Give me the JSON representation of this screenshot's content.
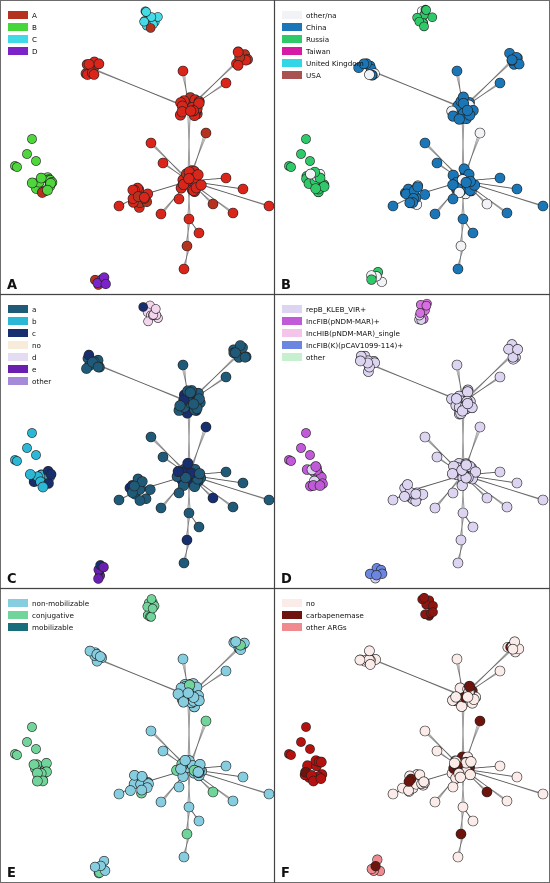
{
  "panels": [
    {
      "letter": "A",
      "legend": [
        {
          "label": "A",
          "color": "#b5321f"
        },
        {
          "label": "B",
          "color": "#47d63a"
        },
        {
          "label": "C",
          "color": "#3fd9e8"
        },
        {
          "label": "D",
          "color": "#7b22c8"
        }
      ],
      "palette": {
        "main": "#d9251a",
        "left": "#4fd63c",
        "top": "#44dbe6",
        "bottom": "#7b22c8",
        "accent": "#b5321f"
      }
    },
    {
      "letter": "B",
      "legend": [
        {
          "label": "other/na",
          "color": "#f2f3f6"
        },
        {
          "label": "China",
          "color": "#1a76b6"
        },
        {
          "label": "Russia",
          "color": "#2fc96a"
        },
        {
          "label": "Taiwan",
          "color": "#d71aa6"
        },
        {
          "label": "United Kingdom",
          "color": "#32d6e6"
        },
        {
          "label": "USA",
          "color": "#a85252"
        }
      ],
      "palette": {
        "main": "#1a76b6",
        "left": "#2fc96a",
        "top": "#2fc96a",
        "bottom": "#2fc96a",
        "accent": "#f2f3f6"
      }
    },
    {
      "letter": "C",
      "legend": [
        {
          "label": "a",
          "color": "#1f5a78"
        },
        {
          "label": "b",
          "color": "#2bb7d6"
        },
        {
          "label": "c",
          "color": "#172f6e"
        },
        {
          "label": "no",
          "color": "#f6ecd9"
        },
        {
          "label": "d",
          "color": "#e4dcf2"
        },
        {
          "label": "e",
          "color": "#6a1fb0"
        },
        {
          "label": "other",
          "color": "#a48ad8"
        }
      ],
      "palette": {
        "main": "#1f5a78",
        "left": "#2bb7d6",
        "top": "#f3d6ee",
        "bottom": "#6a1fb0",
        "accent": "#172f6e"
      }
    },
    {
      "letter": "D",
      "legend": [
        {
          "label": "repB_KLEB_VIR+",
          "color": "#dcd4f0"
        },
        {
          "label": "IncFIB(pNDM-MAR)+",
          "color": "#c05ad8"
        },
        {
          "label": "IncHIB(pNDM-MAR)_single",
          "color": "#f4c4ea"
        },
        {
          "label": "IncFIB(K)(pCAV1099-114)+",
          "color": "#6a86e0"
        },
        {
          "label": "other",
          "color": "#c6f0cf"
        }
      ],
      "palette": {
        "main": "#dcd4f0",
        "left": "#c05ad8",
        "top": "#d66fe0",
        "bottom": "#6a86e0",
        "accent": "#dcd4f0"
      }
    },
    {
      "letter": "E",
      "legend": [
        {
          "label": "non-mobilizable",
          "color": "#86cde0"
        },
        {
          "label": "conjugative",
          "color": "#71d49a"
        },
        {
          "label": "mobilizable",
          "color": "#176d7c"
        }
      ],
      "palette": {
        "main": "#86cde0",
        "left": "#71d49a",
        "top": "#71d49a",
        "bottom": "#86cde0",
        "accent": "#71d49a"
      }
    },
    {
      "letter": "F",
      "legend": [
        {
          "label": "no",
          "color": "#fbecea"
        },
        {
          "label": "carbapenemase",
          "color": "#6e140c"
        },
        {
          "label": "other ARGs",
          "color": "#ef8a8e"
        }
      ],
      "palette": {
        "main": "#fbecea",
        "left": "#b4110f",
        "top": "#8e1510",
        "bottom": "#ef8a8e",
        "accent": "#6e140c"
      }
    }
  ]
}
